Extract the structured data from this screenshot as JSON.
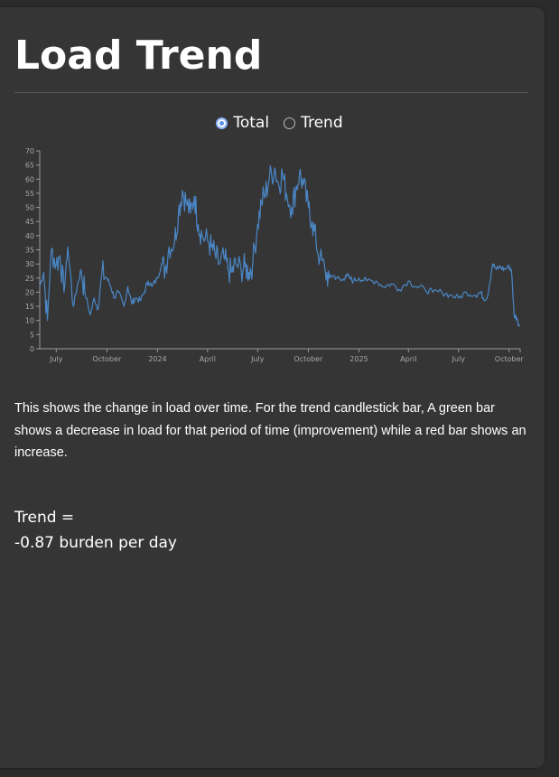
{
  "header": {
    "title": "Load Trend"
  },
  "view_toggle": {
    "options": [
      {
        "label": "Total",
        "checked": true
      },
      {
        "label": "Trend",
        "checked": false
      }
    ]
  },
  "chart_data": {
    "type": "line",
    "title": "",
    "xlabel": "",
    "ylabel": "",
    "ylim": [
      0,
      70
    ],
    "y_ticks": [
      "0",
      "5",
      "10",
      "15",
      "20",
      "25",
      "30",
      "35",
      "40",
      "45",
      "50",
      "55",
      "60",
      "65",
      "70"
    ],
    "x_ticks": [
      "July",
      "October",
      "2024",
      "April",
      "July",
      "October",
      "2025",
      "April",
      "July",
      "October"
    ],
    "grid": false,
    "line_color": "#4a86c5",
    "series": [
      {
        "x": [
          "2023-06-01",
          "2023-06-08",
          "2023-06-15",
          "2023-06-22",
          "2023-07-01",
          "2023-07-08",
          "2023-07-15",
          "2023-07-22",
          "2023-08-01",
          "2023-08-08",
          "2023-08-15",
          "2023-08-22",
          "2023-09-01",
          "2023-09-08",
          "2023-09-15",
          "2023-09-22",
          "2023-10-01",
          "2023-10-08",
          "2023-10-15",
          "2023-10-22",
          "2023-11-01",
          "2023-11-08",
          "2023-11-15",
          "2023-11-22",
          "2023-12-01",
          "2023-12-08",
          "2023-12-15",
          "2023-12-22",
          "2024-01-01",
          "2024-01-08",
          "2024-01-15",
          "2024-01-22",
          "2024-02-01",
          "2024-02-08",
          "2024-02-15",
          "2024-02-22",
          "2024-03-01",
          "2024-03-08",
          "2024-03-15",
          "2024-03-22",
          "2024-04-01",
          "2024-04-08",
          "2024-04-15",
          "2024-04-22",
          "2024-05-01",
          "2024-05-08",
          "2024-05-15",
          "2024-05-22",
          "2024-06-01",
          "2024-06-08",
          "2024-06-15",
          "2024-06-22",
          "2024-07-01",
          "2024-07-08",
          "2024-07-15",
          "2024-07-22",
          "2024-08-01",
          "2024-08-08",
          "2024-08-15",
          "2024-08-22",
          "2024-09-01",
          "2024-09-08",
          "2024-09-15",
          "2024-09-22",
          "2024-10-01",
          "2024-10-08",
          "2024-10-15",
          "2024-10-22",
          "2024-11-01",
          "2024-11-08",
          "2024-11-15",
          "2024-11-22",
          "2024-12-01",
          "2024-12-08",
          "2024-12-15",
          "2024-12-22",
          "2025-01-01",
          "2025-01-15",
          "2025-02-01",
          "2025-02-15",
          "2025-03-01",
          "2025-03-15",
          "2025-04-01",
          "2025-04-15",
          "2025-05-01",
          "2025-05-15",
          "2025-06-01",
          "2025-06-15",
          "2025-07-01",
          "2025-07-15",
          "2025-08-01",
          "2025-08-10",
          "2025-08-15",
          "2025-08-22",
          "2025-09-01",
          "2025-09-08",
          "2025-09-15",
          "2025-09-22",
          "2025-10-01",
          "2025-10-05",
          "2025-10-10",
          "2025-10-15",
          "2025-10-20"
        ],
        "values": [
          22,
          27,
          10,
          35,
          30,
          33,
          20,
          36,
          15,
          22,
          28,
          20,
          12,
          18,
          14,
          27,
          25,
          22,
          18,
          20,
          15,
          22,
          16,
          18,
          17,
          20,
          24,
          22,
          25,
          30,
          28,
          36,
          38,
          48,
          56,
          52,
          48,
          54,
          44,
          40,
          38,
          36,
          33,
          30,
          32,
          28,
          27,
          30,
          28,
          29,
          27,
          30,
          44,
          52,
          55,
          60,
          64,
          58,
          62,
          55,
          50,
          56,
          62,
          58,
          50,
          45,
          38,
          32,
          27,
          25,
          26,
          25,
          24,
          26,
          25,
          24,
          25,
          24,
          24,
          22,
          23,
          21,
          24,
          22,
          21,
          20,
          20,
          19,
          18,
          20,
          19,
          20,
          18,
          18,
          30,
          28,
          29,
          28,
          29,
          28,
          12,
          11,
          8
        ]
      }
    ]
  },
  "description": {
    "text": "This shows the change in load over time. For the trend candlestick bar, A green bar shows a decrease in load for that period of time (improvement) while a red bar shows an increase."
  },
  "trend": {
    "label": "Trend =",
    "value": "-0.87 burden per day"
  }
}
